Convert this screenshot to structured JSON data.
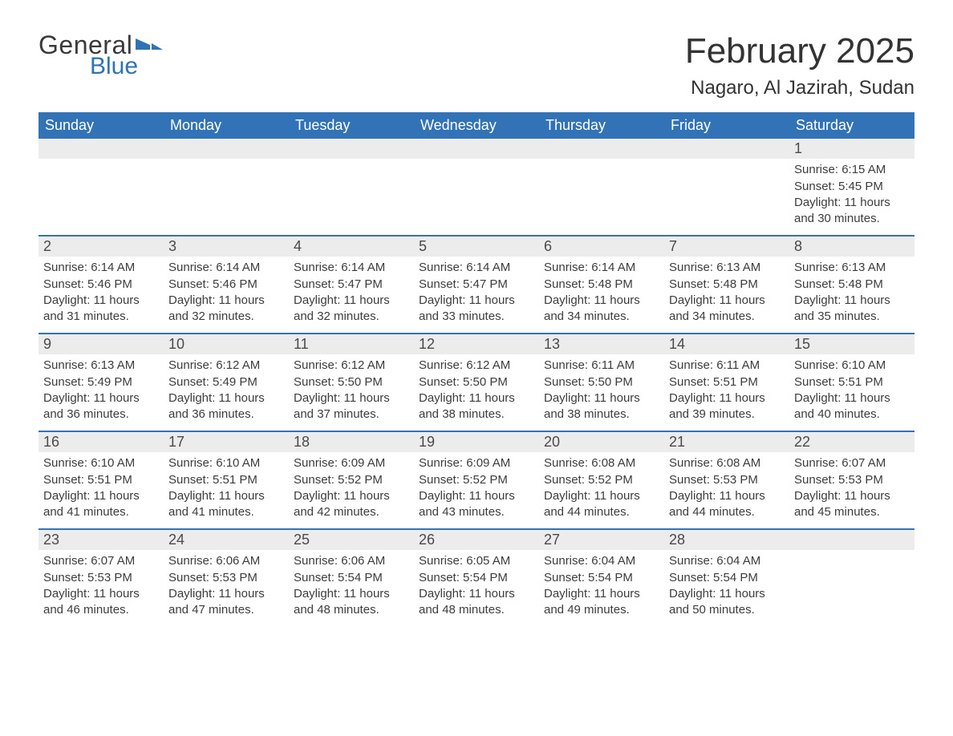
{
  "logo": {
    "text1": "General",
    "text2": "Blue",
    "flag_color": "#2f72b6"
  },
  "title": "February 2025",
  "location": "Nagaro, Al Jazirah, Sudan",
  "colors": {
    "header_bg": "#3273b7",
    "header_text": "#ffffff",
    "daynum_bg": "#ececec",
    "body_text": "#3d3d3d",
    "rule": "#3273b7"
  },
  "weekdays": [
    "Sunday",
    "Monday",
    "Tuesday",
    "Wednesday",
    "Thursday",
    "Friday",
    "Saturday"
  ],
  "weeks": [
    [
      null,
      null,
      null,
      null,
      null,
      null,
      {
        "n": "1",
        "sunrise": "Sunrise: 6:15 AM",
        "sunset": "Sunset: 5:45 PM",
        "day1": "Daylight: 11 hours",
        "day2": "and 30 minutes."
      }
    ],
    [
      {
        "n": "2",
        "sunrise": "Sunrise: 6:14 AM",
        "sunset": "Sunset: 5:46 PM",
        "day1": "Daylight: 11 hours",
        "day2": "and 31 minutes."
      },
      {
        "n": "3",
        "sunrise": "Sunrise: 6:14 AM",
        "sunset": "Sunset: 5:46 PM",
        "day1": "Daylight: 11 hours",
        "day2": "and 32 minutes."
      },
      {
        "n": "4",
        "sunrise": "Sunrise: 6:14 AM",
        "sunset": "Sunset: 5:47 PM",
        "day1": "Daylight: 11 hours",
        "day2": "and 32 minutes."
      },
      {
        "n": "5",
        "sunrise": "Sunrise: 6:14 AM",
        "sunset": "Sunset: 5:47 PM",
        "day1": "Daylight: 11 hours",
        "day2": "and 33 minutes."
      },
      {
        "n": "6",
        "sunrise": "Sunrise: 6:14 AM",
        "sunset": "Sunset: 5:48 PM",
        "day1": "Daylight: 11 hours",
        "day2": "and 34 minutes."
      },
      {
        "n": "7",
        "sunrise": "Sunrise: 6:13 AM",
        "sunset": "Sunset: 5:48 PM",
        "day1": "Daylight: 11 hours",
        "day2": "and 34 minutes."
      },
      {
        "n": "8",
        "sunrise": "Sunrise: 6:13 AM",
        "sunset": "Sunset: 5:48 PM",
        "day1": "Daylight: 11 hours",
        "day2": "and 35 minutes."
      }
    ],
    [
      {
        "n": "9",
        "sunrise": "Sunrise: 6:13 AM",
        "sunset": "Sunset: 5:49 PM",
        "day1": "Daylight: 11 hours",
        "day2": "and 36 minutes."
      },
      {
        "n": "10",
        "sunrise": "Sunrise: 6:12 AM",
        "sunset": "Sunset: 5:49 PM",
        "day1": "Daylight: 11 hours",
        "day2": "and 36 minutes."
      },
      {
        "n": "11",
        "sunrise": "Sunrise: 6:12 AM",
        "sunset": "Sunset: 5:50 PM",
        "day1": "Daylight: 11 hours",
        "day2": "and 37 minutes."
      },
      {
        "n": "12",
        "sunrise": "Sunrise: 6:12 AM",
        "sunset": "Sunset: 5:50 PM",
        "day1": "Daylight: 11 hours",
        "day2": "and 38 minutes."
      },
      {
        "n": "13",
        "sunrise": "Sunrise: 6:11 AM",
        "sunset": "Sunset: 5:50 PM",
        "day1": "Daylight: 11 hours",
        "day2": "and 38 minutes."
      },
      {
        "n": "14",
        "sunrise": "Sunrise: 6:11 AM",
        "sunset": "Sunset: 5:51 PM",
        "day1": "Daylight: 11 hours",
        "day2": "and 39 minutes."
      },
      {
        "n": "15",
        "sunrise": "Sunrise: 6:10 AM",
        "sunset": "Sunset: 5:51 PM",
        "day1": "Daylight: 11 hours",
        "day2": "and 40 minutes."
      }
    ],
    [
      {
        "n": "16",
        "sunrise": "Sunrise: 6:10 AM",
        "sunset": "Sunset: 5:51 PM",
        "day1": "Daylight: 11 hours",
        "day2": "and 41 minutes."
      },
      {
        "n": "17",
        "sunrise": "Sunrise: 6:10 AM",
        "sunset": "Sunset: 5:51 PM",
        "day1": "Daylight: 11 hours",
        "day2": "and 41 minutes."
      },
      {
        "n": "18",
        "sunrise": "Sunrise: 6:09 AM",
        "sunset": "Sunset: 5:52 PM",
        "day1": "Daylight: 11 hours",
        "day2": "and 42 minutes."
      },
      {
        "n": "19",
        "sunrise": "Sunrise: 6:09 AM",
        "sunset": "Sunset: 5:52 PM",
        "day1": "Daylight: 11 hours",
        "day2": "and 43 minutes."
      },
      {
        "n": "20",
        "sunrise": "Sunrise: 6:08 AM",
        "sunset": "Sunset: 5:52 PM",
        "day1": "Daylight: 11 hours",
        "day2": "and 44 minutes."
      },
      {
        "n": "21",
        "sunrise": "Sunrise: 6:08 AM",
        "sunset": "Sunset: 5:53 PM",
        "day1": "Daylight: 11 hours",
        "day2": "and 44 minutes."
      },
      {
        "n": "22",
        "sunrise": "Sunrise: 6:07 AM",
        "sunset": "Sunset: 5:53 PM",
        "day1": "Daylight: 11 hours",
        "day2": "and 45 minutes."
      }
    ],
    [
      {
        "n": "23",
        "sunrise": "Sunrise: 6:07 AM",
        "sunset": "Sunset: 5:53 PM",
        "day1": "Daylight: 11 hours",
        "day2": "and 46 minutes."
      },
      {
        "n": "24",
        "sunrise": "Sunrise: 6:06 AM",
        "sunset": "Sunset: 5:53 PM",
        "day1": "Daylight: 11 hours",
        "day2": "and 47 minutes."
      },
      {
        "n": "25",
        "sunrise": "Sunrise: 6:06 AM",
        "sunset": "Sunset: 5:54 PM",
        "day1": "Daylight: 11 hours",
        "day2": "and 48 minutes."
      },
      {
        "n": "26",
        "sunrise": "Sunrise: 6:05 AM",
        "sunset": "Sunset: 5:54 PM",
        "day1": "Daylight: 11 hours",
        "day2": "and 48 minutes."
      },
      {
        "n": "27",
        "sunrise": "Sunrise: 6:04 AM",
        "sunset": "Sunset: 5:54 PM",
        "day1": "Daylight: 11 hours",
        "day2": "and 49 minutes."
      },
      {
        "n": "28",
        "sunrise": "Sunrise: 6:04 AM",
        "sunset": "Sunset: 5:54 PM",
        "day1": "Daylight: 11 hours",
        "day2": "and 50 minutes."
      },
      null
    ]
  ]
}
